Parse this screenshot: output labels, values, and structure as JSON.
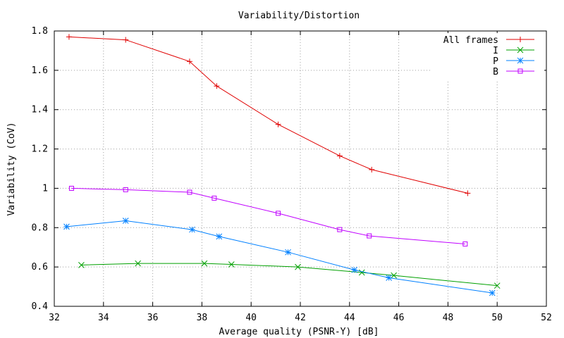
{
  "chart_data": {
    "type": "line",
    "title": "Variability/Distortion",
    "xlabel": "Average quality (PSNR-Y) [dB]",
    "ylabel": "Variability (CoV)",
    "xlim": [
      32,
      52
    ],
    "ylim": [
      0.4,
      1.8
    ],
    "grid": true,
    "legend_position": "top-right",
    "xticks": [
      32,
      34,
      36,
      38,
      40,
      42,
      44,
      46,
      48,
      50,
      52
    ],
    "yticks": [
      0.4,
      0.6,
      0.8,
      1,
      1.2,
      1.4,
      1.6,
      1.8
    ],
    "xtick_labels": [
      "32",
      "34",
      "36",
      "38",
      "40",
      "42",
      "44",
      "46",
      "48",
      "50",
      "52"
    ],
    "ytick_labels": [
      "0.4",
      "0.6",
      "0.8",
      "1",
      "1.2",
      "1.4",
      "1.6",
      "1.8"
    ],
    "series": [
      {
        "name": "All frames",
        "color": "#e00000",
        "marker": "plus",
        "points": [
          [
            32.6,
            1.77
          ],
          [
            34.9,
            1.755
          ],
          [
            37.5,
            1.645
          ],
          [
            38.6,
            1.52
          ],
          [
            41.1,
            1.325
          ],
          [
            43.6,
            1.165
          ],
          [
            44.9,
            1.095
          ],
          [
            48.8,
            0.975
          ]
        ]
      },
      {
        "name": "I",
        "color": "#00a000",
        "marker": "cross",
        "points": [
          [
            33.1,
            0.61
          ],
          [
            35.4,
            0.618
          ],
          [
            38.1,
            0.618
          ],
          [
            39.2,
            0.613
          ],
          [
            41.9,
            0.6
          ],
          [
            44.5,
            0.572
          ],
          [
            45.8,
            0.557
          ],
          [
            50.0,
            0.505
          ]
        ]
      },
      {
        "name": "P",
        "color": "#0080ff",
        "marker": "star",
        "points": [
          [
            32.5,
            0.805
          ],
          [
            34.9,
            0.835
          ],
          [
            37.6,
            0.79
          ],
          [
            38.7,
            0.755
          ],
          [
            41.5,
            0.675
          ],
          [
            44.2,
            0.585
          ],
          [
            45.6,
            0.545
          ],
          [
            49.8,
            0.468
          ]
        ]
      },
      {
        "name": "B",
        "color": "#c000ff",
        "marker": "square",
        "points": [
          [
            32.7,
            1.0
          ],
          [
            34.9,
            0.993
          ],
          [
            37.5,
            0.98
          ],
          [
            38.5,
            0.95
          ],
          [
            41.1,
            0.873
          ],
          [
            43.6,
            0.79
          ],
          [
            44.8,
            0.758
          ],
          [
            48.7,
            0.717
          ]
        ]
      }
    ]
  }
}
